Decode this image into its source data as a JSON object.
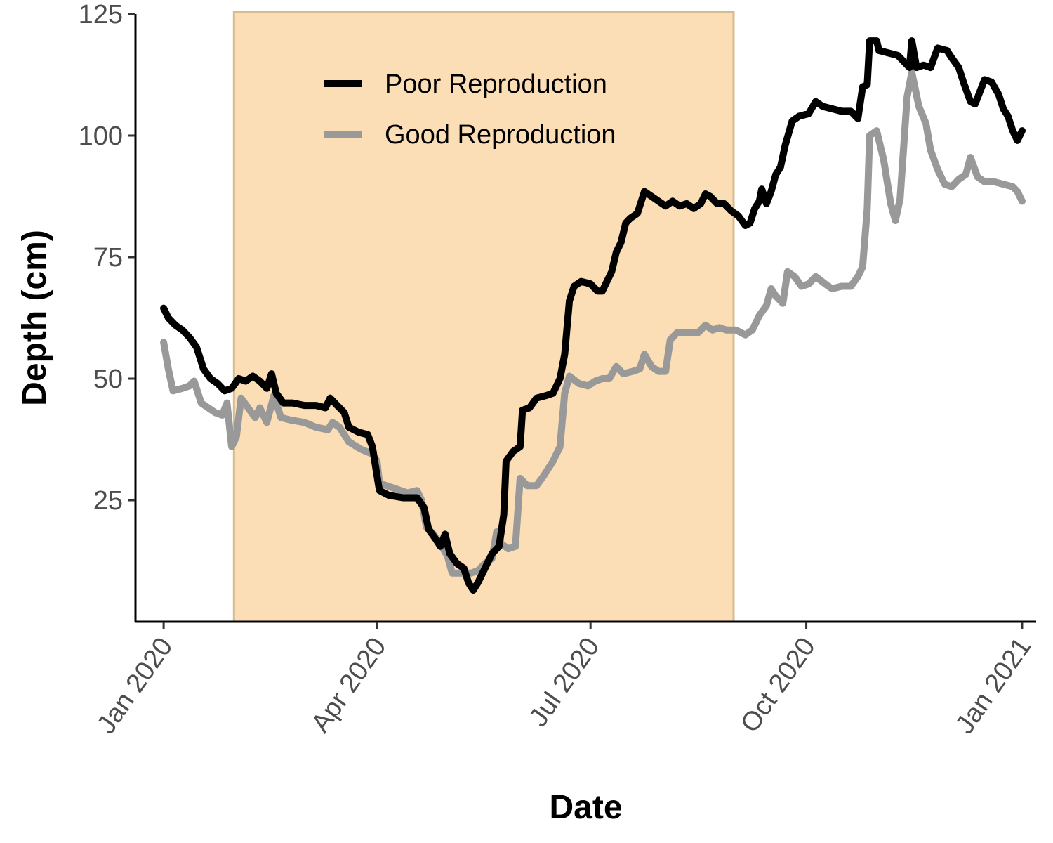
{
  "chart_data": {
    "type": "line",
    "title": "",
    "xlabel": "Date",
    "ylabel": "Depth (cm)",
    "x_type": "date",
    "xlim": [
      "2019-12-20",
      "2021-01-07"
    ],
    "ylim": [
      0,
      125
    ],
    "x_ticks": [
      {
        "date": "2020-01-01",
        "label": "Jan 2020"
      },
      {
        "date": "2020-04-01",
        "label": "Apr 2020"
      },
      {
        "date": "2020-07-01",
        "label": "Jul 2020"
      },
      {
        "date": "2020-10-01",
        "label": "Oct 2020"
      },
      {
        "date": "2021-01-01",
        "label": "Jan 2021"
      }
    ],
    "y_ticks": [
      25,
      50,
      75,
      100,
      125
    ],
    "grid": false,
    "legend_position": "top-left-inside",
    "shaded_region": {
      "x_start": "2020-01-31",
      "x_end": "2020-08-31",
      "y_top": 125.5,
      "color": "#fbdeb6",
      "border_color": "#d6bc8f"
    },
    "series": [
      {
        "name": "Poor Reproduction",
        "color": "#000000",
        "points": [
          [
            "2020-01-01",
            64.5
          ],
          [
            "2020-01-03",
            62.5
          ],
          [
            "2020-01-06",
            61
          ],
          [
            "2020-01-09",
            60
          ],
          [
            "2020-01-12",
            58.5
          ],
          [
            "2020-01-15",
            56.5
          ],
          [
            "2020-01-18",
            52
          ],
          [
            "2020-01-21",
            50
          ],
          [
            "2020-01-24",
            49
          ],
          [
            "2020-01-27",
            47.5
          ],
          [
            "2020-01-30",
            48
          ],
          [
            "2020-02-02",
            50
          ],
          [
            "2020-02-05",
            49.5
          ],
          [
            "2020-02-08",
            50.5
          ],
          [
            "2020-02-11",
            49.5
          ],
          [
            "2020-02-14",
            48
          ],
          [
            "2020-02-16",
            51
          ],
          [
            "2020-02-18",
            47
          ],
          [
            "2020-02-21",
            45
          ],
          [
            "2020-02-25",
            45
          ],
          [
            "2020-03-01",
            44.5
          ],
          [
            "2020-03-06",
            44.5
          ],
          [
            "2020-03-10",
            44
          ],
          [
            "2020-03-12",
            46
          ],
          [
            "2020-03-15",
            44.5
          ],
          [
            "2020-03-18",
            43
          ],
          [
            "2020-03-20",
            40
          ],
          [
            "2020-03-24",
            39
          ],
          [
            "2020-03-28",
            38.5
          ],
          [
            "2020-03-30",
            36
          ],
          [
            "2020-04-01",
            30
          ],
          [
            "2020-04-02",
            27
          ],
          [
            "2020-04-06",
            26
          ],
          [
            "2020-04-12",
            25.5
          ],
          [
            "2020-04-18",
            25.5
          ],
          [
            "2020-04-21",
            23.5
          ],
          [
            "2020-04-23",
            19
          ],
          [
            "2020-04-26",
            17
          ],
          [
            "2020-04-28",
            15.5
          ],
          [
            "2020-04-30",
            18
          ],
          [
            "2020-05-02",
            14
          ],
          [
            "2020-05-05",
            12
          ],
          [
            "2020-05-08",
            11
          ],
          [
            "2020-05-10",
            8
          ],
          [
            "2020-05-12",
            6.5
          ],
          [
            "2020-05-14",
            8
          ],
          [
            "2020-05-17",
            11
          ],
          [
            "2020-05-20",
            14
          ],
          [
            "2020-05-23",
            15.5
          ],
          [
            "2020-05-25",
            22
          ],
          [
            "2020-05-26",
            33
          ],
          [
            "2020-05-29",
            35
          ],
          [
            "2020-06-01",
            36
          ],
          [
            "2020-06-02",
            43.5
          ],
          [
            "2020-06-05",
            44
          ],
          [
            "2020-06-08",
            46
          ],
          [
            "2020-06-12",
            46.5
          ],
          [
            "2020-06-15",
            47
          ],
          [
            "2020-06-18",
            50
          ],
          [
            "2020-06-20",
            55
          ],
          [
            "2020-06-22",
            66
          ],
          [
            "2020-06-24",
            69
          ],
          [
            "2020-06-27",
            70
          ],
          [
            "2020-07-01",
            69.5
          ],
          [
            "2020-07-04",
            68
          ],
          [
            "2020-07-06",
            68
          ],
          [
            "2020-07-08",
            70
          ],
          [
            "2020-07-10",
            72
          ],
          [
            "2020-07-12",
            76
          ],
          [
            "2020-07-14",
            78
          ],
          [
            "2020-07-16",
            82
          ],
          [
            "2020-07-18",
            83
          ],
          [
            "2020-07-21",
            84
          ],
          [
            "2020-07-24",
            88.5
          ],
          [
            "2020-07-27",
            87.5
          ],
          [
            "2020-07-30",
            86.5
          ],
          [
            "2020-08-02",
            85.5
          ],
          [
            "2020-08-05",
            86.5
          ],
          [
            "2020-08-08",
            85.5
          ],
          [
            "2020-08-11",
            86
          ],
          [
            "2020-08-14",
            85
          ],
          [
            "2020-08-17",
            86
          ],
          [
            "2020-08-19",
            88
          ],
          [
            "2020-08-21",
            87.5
          ],
          [
            "2020-08-24",
            86
          ],
          [
            "2020-08-27",
            86
          ],
          [
            "2020-08-30",
            84.5
          ],
          [
            "2020-09-02",
            83.5
          ],
          [
            "2020-09-05",
            81.5
          ],
          [
            "2020-09-07",
            82
          ],
          [
            "2020-09-09",
            85
          ],
          [
            "2020-09-11",
            86.5
          ],
          [
            "2020-09-12",
            89
          ],
          [
            "2020-09-14",
            86
          ],
          [
            "2020-09-16",
            88.5
          ],
          [
            "2020-09-18",
            92
          ],
          [
            "2020-09-20",
            93.5
          ],
          [
            "2020-09-22",
            98
          ],
          [
            "2020-09-25",
            103
          ],
          [
            "2020-09-28",
            104
          ],
          [
            "2020-10-02",
            104.5
          ],
          [
            "2020-10-05",
            107
          ],
          [
            "2020-10-08",
            106
          ],
          [
            "2020-10-12",
            105.5
          ],
          [
            "2020-10-16",
            105
          ],
          [
            "2020-10-20",
            105
          ],
          [
            "2020-10-23",
            103.5
          ],
          [
            "2020-10-25",
            110
          ],
          [
            "2020-10-27",
            110.5
          ],
          [
            "2020-10-28",
            119.5
          ],
          [
            "2020-10-31",
            119.5
          ],
          [
            "2020-11-01",
            117.5
          ],
          [
            "2020-11-05",
            117
          ],
          [
            "2020-11-09",
            116.5
          ],
          [
            "2020-11-12",
            115
          ],
          [
            "2020-11-14",
            114
          ],
          [
            "2020-11-15",
            119.5
          ],
          [
            "2020-11-17",
            114
          ],
          [
            "2020-11-20",
            114.5
          ],
          [
            "2020-11-23",
            114
          ],
          [
            "2020-11-26",
            118
          ],
          [
            "2020-11-30",
            117.5
          ],
          [
            "2020-12-02",
            116
          ],
          [
            "2020-12-05",
            114
          ],
          [
            "2020-12-07",
            111
          ],
          [
            "2020-12-10",
            107
          ],
          [
            "2020-12-12",
            106.5
          ],
          [
            "2020-12-14",
            109
          ],
          [
            "2020-12-16",
            111.5
          ],
          [
            "2020-12-19",
            111
          ],
          [
            "2020-12-22",
            108.5
          ],
          [
            "2020-12-24",
            105.5
          ],
          [
            "2020-12-26",
            104
          ],
          [
            "2020-12-28",
            101
          ],
          [
            "2020-12-30",
            99
          ],
          [
            "2021-01-01",
            101
          ]
        ]
      },
      {
        "name": "Good Reproduction",
        "color": "#999999",
        "points": [
          [
            "2020-01-01",
            57.5
          ],
          [
            "2020-01-03",
            52
          ],
          [
            "2020-01-05",
            47.5
          ],
          [
            "2020-01-09",
            48
          ],
          [
            "2020-01-12",
            48.5
          ],
          [
            "2020-01-14",
            49.5
          ],
          [
            "2020-01-17",
            45
          ],
          [
            "2020-01-20",
            44
          ],
          [
            "2020-01-23",
            43
          ],
          [
            "2020-01-26",
            42.5
          ],
          [
            "2020-01-28",
            45
          ],
          [
            "2020-01-30",
            36
          ],
          [
            "2020-02-01",
            38
          ],
          [
            "2020-02-03",
            46
          ],
          [
            "2020-02-06",
            44
          ],
          [
            "2020-02-09",
            42
          ],
          [
            "2020-02-11",
            44
          ],
          [
            "2020-02-14",
            41
          ],
          [
            "2020-02-17",
            46.5
          ],
          [
            "2020-02-20",
            42
          ],
          [
            "2020-02-24",
            41.5
          ],
          [
            "2020-03-01",
            41
          ],
          [
            "2020-03-06",
            40
          ],
          [
            "2020-03-11",
            39.5
          ],
          [
            "2020-03-13",
            41
          ],
          [
            "2020-03-16",
            40
          ],
          [
            "2020-03-20",
            37
          ],
          [
            "2020-03-25",
            35.5
          ],
          [
            "2020-03-30",
            34.5
          ],
          [
            "2020-04-01",
            33
          ],
          [
            "2020-04-02",
            28.5
          ],
          [
            "2020-04-08",
            27.5
          ],
          [
            "2020-04-14",
            26.5
          ],
          [
            "2020-04-18",
            27
          ],
          [
            "2020-04-20",
            25
          ],
          [
            "2020-04-22",
            19.5
          ],
          [
            "2020-04-25",
            18
          ],
          [
            "2020-04-28",
            16
          ],
          [
            "2020-05-01",
            13.5
          ],
          [
            "2020-05-03",
            10
          ],
          [
            "2020-05-07",
            10
          ],
          [
            "2020-05-11",
            10
          ],
          [
            "2020-05-14",
            10.5
          ],
          [
            "2020-05-17",
            12
          ],
          [
            "2020-05-20",
            13
          ],
          [
            "2020-05-22",
            18.5
          ],
          [
            "2020-05-24",
            16
          ],
          [
            "2020-05-27",
            15
          ],
          [
            "2020-05-30",
            15.5
          ],
          [
            "2020-06-01",
            29.5
          ],
          [
            "2020-06-04",
            28
          ],
          [
            "2020-06-08",
            28
          ],
          [
            "2020-06-11",
            30
          ],
          [
            "2020-06-15",
            33
          ],
          [
            "2020-06-18",
            36
          ],
          [
            "2020-06-20",
            47
          ],
          [
            "2020-06-22",
            50.5
          ],
          [
            "2020-06-26",
            49
          ],
          [
            "2020-06-30",
            48.5
          ],
          [
            "2020-07-03",
            49.5
          ],
          [
            "2020-07-06",
            50
          ],
          [
            "2020-07-09",
            50
          ],
          [
            "2020-07-12",
            52.5
          ],
          [
            "2020-07-15",
            51
          ],
          [
            "2020-07-19",
            51.5
          ],
          [
            "2020-07-22",
            52
          ],
          [
            "2020-07-24",
            55
          ],
          [
            "2020-07-27",
            52.5
          ],
          [
            "2020-07-30",
            51.5
          ],
          [
            "2020-08-02",
            51.5
          ],
          [
            "2020-08-04",
            58
          ],
          [
            "2020-08-07",
            59.5
          ],
          [
            "2020-08-12",
            59.5
          ],
          [
            "2020-08-16",
            59.5
          ],
          [
            "2020-08-19",
            61
          ],
          [
            "2020-08-22",
            60
          ],
          [
            "2020-08-25",
            60.5
          ],
          [
            "2020-08-28",
            60
          ],
          [
            "2020-09-01",
            60
          ],
          [
            "2020-09-05",
            59
          ],
          [
            "2020-09-08",
            60
          ],
          [
            "2020-09-11",
            63
          ],
          [
            "2020-09-14",
            65
          ],
          [
            "2020-09-16",
            68.5
          ],
          [
            "2020-09-18",
            67
          ],
          [
            "2020-09-21",
            65.5
          ],
          [
            "2020-09-23",
            72
          ],
          [
            "2020-09-26",
            71
          ],
          [
            "2020-09-29",
            69
          ],
          [
            "2020-10-02",
            69.5
          ],
          [
            "2020-10-05",
            71
          ],
          [
            "2020-10-09",
            69.5
          ],
          [
            "2020-10-12",
            68.5
          ],
          [
            "2020-10-16",
            69
          ],
          [
            "2020-10-20",
            69
          ],
          [
            "2020-10-23",
            71
          ],
          [
            "2020-10-25",
            73
          ],
          [
            "2020-10-27",
            85
          ],
          [
            "2020-10-28",
            100
          ],
          [
            "2020-10-31",
            101
          ],
          [
            "2020-11-03",
            95
          ],
          [
            "2020-11-06",
            86
          ],
          [
            "2020-11-08",
            82.5
          ],
          [
            "2020-11-10",
            87
          ],
          [
            "2020-11-13",
            108
          ],
          [
            "2020-11-15",
            113
          ],
          [
            "2020-11-18",
            106
          ],
          [
            "2020-11-21",
            102.5
          ],
          [
            "2020-11-23",
            97
          ],
          [
            "2020-11-26",
            93
          ],
          [
            "2020-11-29",
            90
          ],
          [
            "2020-12-02",
            89.5
          ],
          [
            "2020-12-05",
            91
          ],
          [
            "2020-12-08",
            92
          ],
          [
            "2020-12-10",
            95.5
          ],
          [
            "2020-12-13",
            91.5
          ],
          [
            "2020-12-16",
            90.5
          ],
          [
            "2020-12-20",
            90.5
          ],
          [
            "2020-12-24",
            90
          ],
          [
            "2020-12-28",
            89.5
          ],
          [
            "2020-12-30",
            88.5
          ],
          [
            "2021-01-01",
            86.5
          ]
        ]
      }
    ]
  }
}
